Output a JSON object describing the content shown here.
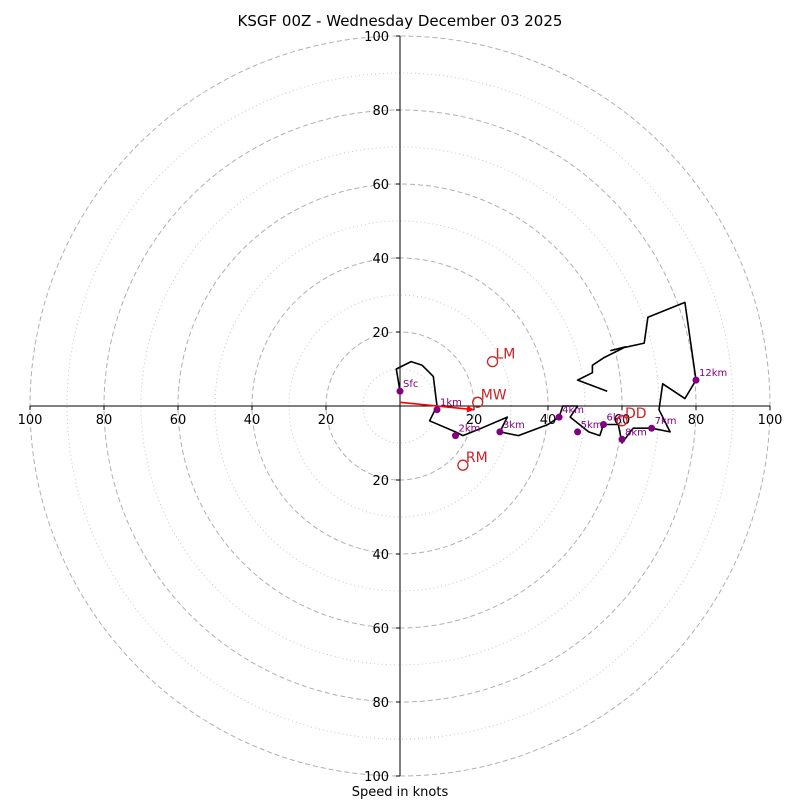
{
  "chart_data": {
    "type": "hodograph",
    "title": "KSGF 00Z - Wednesday December 03 2025",
    "xlabel": "Speed in knots",
    "max_speed": 100,
    "ring_major": [
      20,
      40,
      60,
      80,
      100
    ],
    "ring_minor": [
      10,
      30,
      50,
      70,
      90
    ],
    "tick_labels_left": [
      "100",
      "80",
      "60",
      "40",
      "20"
    ],
    "tick_labels_right": [
      "20",
      "40",
      "60",
      "80",
      "100"
    ],
    "tick_labels_up": [
      "20",
      "40",
      "60",
      "80",
      "100"
    ],
    "tick_labels_down": [
      "20",
      "40",
      "60",
      "80",
      "100"
    ],
    "hodograph_trace": [
      [
        0,
        4
      ],
      [
        -1,
        10
      ],
      [
        3,
        12
      ],
      [
        6,
        11
      ],
      [
        9,
        8
      ],
      [
        10,
        0
      ],
      [
        8,
        -4
      ],
      [
        15,
        -7
      ],
      [
        17,
        -8
      ],
      [
        22,
        -6
      ],
      [
        29,
        -3
      ],
      [
        27,
        -7
      ],
      [
        32,
        -8
      ],
      [
        40,
        -5
      ],
      [
        43,
        -3
      ],
      [
        44,
        0
      ],
      [
        48,
        0
      ],
      [
        46,
        -3
      ],
      [
        51,
        -7
      ],
      [
        54,
        -8
      ],
      [
        55,
        -5
      ],
      [
        59,
        -5
      ],
      [
        60,
        -10
      ],
      [
        63,
        -6
      ],
      [
        68,
        -6
      ],
      [
        73,
        -7
      ],
      [
        70,
        -1
      ],
      [
        71,
        6
      ],
      [
        77,
        2
      ],
      [
        80,
        7
      ],
      [
        77,
        28
      ],
      [
        67,
        24
      ],
      [
        66,
        17
      ],
      [
        57,
        15
      ],
      [
        61,
        16
      ],
      [
        55,
        13
      ],
      [
        52,
        11
      ],
      [
        52,
        9
      ],
      [
        48,
        7
      ],
      [
        56,
        4
      ]
    ],
    "height_markers": [
      {
        "label": "Sfc",
        "u": 0,
        "v": 4
      },
      {
        "label": "1km",
        "u": 10,
        "v": -1
      },
      {
        "label": "2km",
        "u": 15,
        "v": -8
      },
      {
        "label": "3km",
        "u": 27,
        "v": -7
      },
      {
        "label": "4km",
        "u": 43,
        "v": -3
      },
      {
        "label": "5km",
        "u": 48,
        "v": -7
      },
      {
        "label": "6km",
        "u": 55,
        "v": -5
      },
      {
        "label": "8km",
        "u": 60,
        "v": -9
      },
      {
        "label": "7km",
        "u": 68,
        "v": -6
      },
      {
        "label": "12km",
        "u": 80,
        "v": 7
      }
    ],
    "motion_markers": [
      {
        "label": "LM",
        "u": 25,
        "v": 12
      },
      {
        "label": "MW",
        "u": 21,
        "v": 1
      },
      {
        "label": "RM",
        "u": 17,
        "v": -16
      },
      {
        "label": "DD",
        "u": 60,
        "v": -4
      }
    ],
    "motion_vector": {
      "from_u": 0,
      "from_v": 1,
      "to_u": 20,
      "to_v": -1
    },
    "colors": {
      "trace": "#000000",
      "markers": "#800080",
      "motion": "#cc2222",
      "vector": "#ff0000",
      "rings": "#b0b0b0",
      "axes": "#000000"
    }
  }
}
